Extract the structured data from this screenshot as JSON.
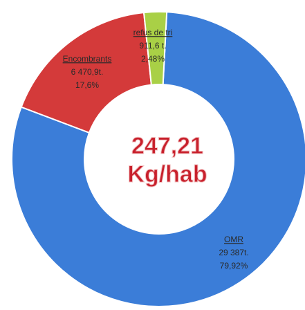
{
  "chart_data": {
    "type": "donut",
    "categories": [
      "OMR",
      "Encombrants",
      "refus de tri"
    ],
    "values": [
      79.92,
      17.6,
      2.48
    ],
    "value_labels": [
      "79,92%",
      "17,6%",
      "2,48%"
    ],
    "tonnages": [
      "29 387t.",
      "6 470,9t.",
      "911,6 t."
    ],
    "colors": [
      "#3b7dd8",
      "#d43a3a",
      "#a9d046"
    ],
    "center_text": [
      "247,21",
      "Kg/hab"
    ]
  }
}
